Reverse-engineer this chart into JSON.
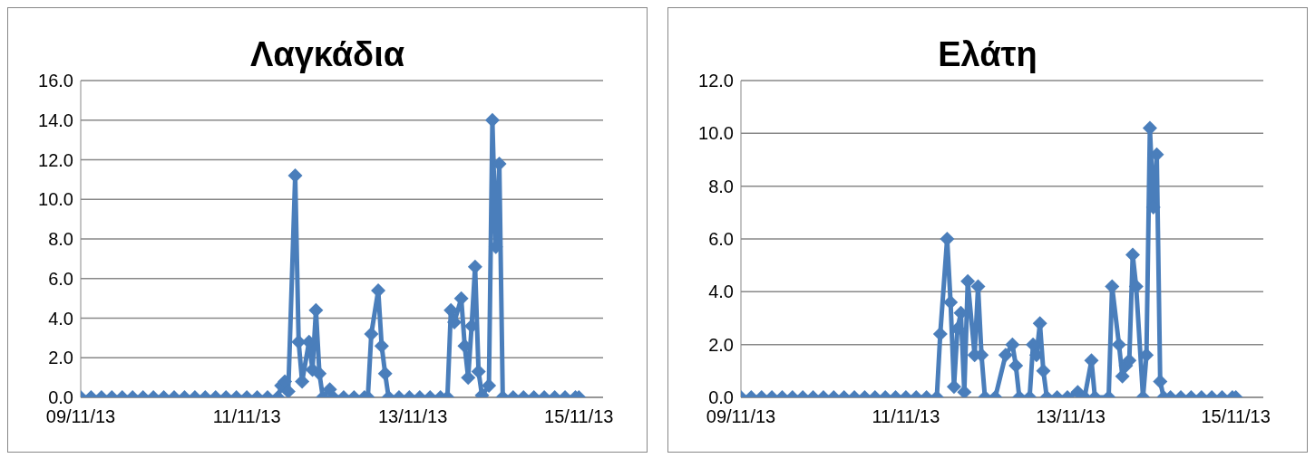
{
  "chart_data": [
    {
      "type": "line",
      "title": "Λαγκάδια",
      "color": "#4a7ebb",
      "marker": "diamond",
      "line_style": "solid",
      "grid": "y",
      "legend": false,
      "xlim": [
        "--11-09T00:00",
        "--11-15T07:00"
      ],
      "xticks": [
        {
          "value": "--11-09",
          "label": "09/11/13"
        },
        {
          "value": "--11-11",
          "label": "11/11/13"
        },
        {
          "value": "--11-13",
          "label": "13/11/13"
        },
        {
          "value": "--11-15",
          "label": "15/11/13"
        }
      ],
      "ylim": [
        0,
        16
      ],
      "yticks": [
        {
          "value": 0,
          "label": "0.0"
        },
        {
          "value": 2,
          "label": "2.0"
        },
        {
          "value": 4,
          "label": "4.0"
        },
        {
          "value": 6,
          "label": "6.0"
        },
        {
          "value": 8,
          "label": "8.0"
        },
        {
          "value": 10,
          "label": "10.0"
        },
        {
          "value": 12,
          "label": "12.0"
        },
        {
          "value": 14,
          "label": "14.0"
        },
        {
          "value": 16,
          "label": "16.0"
        }
      ],
      "x": [
        "--11-09T00:00",
        "--11-09T03:00",
        "--11-09T06:00",
        "--11-09T09:00",
        "--11-09T12:00",
        "--11-09T15:00",
        "--11-09T18:00",
        "--11-09T21:00",
        "--11-10T00:00",
        "--11-10T03:00",
        "--11-10T06:00",
        "--11-10T09:00",
        "--11-10T12:00",
        "--11-10T15:00",
        "--11-10T18:00",
        "--11-10T21:00",
        "--11-11T00:00",
        "--11-11T03:00",
        "--11-11T06:00",
        "--11-11T09:00",
        "--11-11T10:00",
        "--11-11T11:00",
        "--11-11T12:00",
        "--11-11T14:00",
        "--11-11T15:00",
        "--11-11T16:00",
        "--11-11T18:00",
        "--11-11T19:00",
        "--11-11T20:00",
        "--11-11T21:00",
        "--11-11T22:00",
        "--11-12T00:00",
        "--11-12T01:00",
        "--11-12T04:00",
        "--11-12T07:00",
        "--11-12T10:00",
        "--11-12T11:00",
        "--11-12T12:00",
        "--11-12T14:00",
        "--11-12T15:00",
        "--11-12T16:00",
        "--11-12T17:00",
        "--11-12T20:00",
        "--11-12T23:00",
        "--11-13T02:00",
        "--11-13T05:00",
        "--11-13T08:00",
        "--11-13T10:00",
        "--11-13T11:00",
        "--11-13T12:00",
        "--11-13T14:00",
        "--11-13T15:00",
        "--11-13T16:00",
        "--11-13T17:00",
        "--11-13T18:00",
        "--11-13T19:00",
        "--11-13T20:00",
        "--11-13T22:00",
        "--11-13T23:00",
        "--11-14T00:00",
        "--11-14T01:00",
        "--11-14T02:00",
        "--11-14T05:00",
        "--11-14T08:00",
        "--11-14T11:00",
        "--11-14T14:00",
        "--11-14T17:00",
        "--11-14T20:00",
        "--11-14T23:00",
        "--11-15T00:00"
      ],
      "values": [
        0,
        0,
        0,
        0,
        0,
        0,
        0,
        0,
        0,
        0,
        0,
        0,
        0,
        0,
        0,
        0,
        0,
        0,
        0,
        0,
        0.6,
        0.8,
        0.3,
        11.2,
        2.8,
        0.8,
        2.8,
        1.4,
        4.4,
        1.2,
        0,
        0.4,
        0,
        0,
        0,
        0,
        0,
        3.2,
        5.4,
        2.6,
        1.2,
        0,
        0,
        0,
        0,
        0,
        0,
        0,
        4.4,
        3.8,
        5.0,
        2.6,
        1.0,
        3.6,
        6.6,
        1.3,
        0.1,
        0.6,
        14.0,
        7.6,
        11.8,
        0,
        0,
        0,
        0,
        0,
        0,
        0,
        0,
        0
      ]
    },
    {
      "type": "line",
      "title": "Ελάτη",
      "color": "#4a7ebb",
      "marker": "diamond",
      "line_style": "solid",
      "grid": "y",
      "legend": false,
      "xlim": [
        "--11-09T00:00",
        "--11-15T08:00"
      ],
      "xticks": [
        {
          "value": "--11-09",
          "label": "09/11/13"
        },
        {
          "value": "--11-11",
          "label": "11/11/13"
        },
        {
          "value": "--11-13",
          "label": "13/11/13"
        },
        {
          "value": "--11-15",
          "label": "15/11/13"
        }
      ],
      "ylim": [
        0,
        12
      ],
      "yticks": [
        {
          "value": 0,
          "label": "0.0"
        },
        {
          "value": 2,
          "label": "2.0"
        },
        {
          "value": 4,
          "label": "4.0"
        },
        {
          "value": 6,
          "label": "6.0"
        },
        {
          "value": 8,
          "label": "8.0"
        },
        {
          "value": 10,
          "label": "10.0"
        },
        {
          "value": 12,
          "label": "12.0"
        }
      ],
      "x": [
        "--11-09T00:00",
        "--11-09T03:00",
        "--11-09T06:00",
        "--11-09T09:00",
        "--11-09T12:00",
        "--11-09T15:00",
        "--11-09T18:00",
        "--11-09T21:00",
        "--11-10T00:00",
        "--11-10T03:00",
        "--11-10T06:00",
        "--11-10T09:00",
        "--11-10T12:00",
        "--11-10T15:00",
        "--11-10T18:00",
        "--11-10T21:00",
        "--11-11T00:00",
        "--11-11T03:00",
        "--11-11T06:00",
        "--11-11T09:00",
        "--11-11T10:00",
        "--11-11T12:00",
        "--11-11T13:00",
        "--11-11T14:00",
        "--11-11T15:00",
        "--11-11T16:00",
        "--11-11T17:00",
        "--11-11T18:00",
        "--11-11T20:00",
        "--11-11T21:00",
        "--11-11T22:00",
        "--11-11T23:00",
        "--11-12T02:00",
        "--11-12T05:00",
        "--11-12T07:00",
        "--11-12T08:00",
        "--11-12T09:00",
        "--11-12T12:00",
        "--11-12T13:00",
        "--11-12T14:00",
        "--11-12T15:00",
        "--11-12T16:00",
        "--11-12T17:00",
        "--11-12T20:00",
        "--11-12T23:00",
        "--11-13T02:00",
        "--11-13T04:00",
        "--11-13T06:00",
        "--11-13T07:00",
        "--11-13T11:00",
        "--11-13T12:00",
        "--11-13T14:00",
        "--11-13T15:00",
        "--11-13T16:00",
        "--11-13T17:00",
        "--11-13T18:00",
        "--11-13T19:00",
        "--11-13T21:00",
        "--11-13T22:00",
        "--11-13T23:00",
        "--11-14T00:00",
        "--11-14T01:00",
        "--11-14T02:00",
        "--11-14T03:00",
        "--11-14T05:00",
        "--11-14T08:00",
        "--11-14T11:00",
        "--11-14T14:00",
        "--11-14T17:00",
        "--11-14T20:00",
        "--11-14T23:00",
        "--11-15T00:00"
      ],
      "values": [
        0,
        0,
        0,
        0,
        0,
        0,
        0,
        0,
        0,
        0,
        0,
        0,
        0,
        0,
        0,
        0,
        0,
        0,
        0,
        0,
        2.4,
        6.0,
        3.6,
        0.4,
        2.6,
        3.2,
        0.2,
        4.4,
        1.6,
        4.2,
        1.6,
        0,
        0,
        1.6,
        2.0,
        1.2,
        0,
        0,
        2.0,
        1.6,
        2.8,
        1.0,
        0,
        0,
        0,
        0.2,
        0,
        1.4,
        0,
        0,
        4.2,
        2.0,
        0.8,
        1.2,
        1.4,
        5.4,
        4.2,
        0,
        1.6,
        10.2,
        7.2,
        9.2,
        0.6,
        0,
        0,
        0,
        0,
        0,
        0,
        0,
        0,
        0
      ]
    }
  ]
}
